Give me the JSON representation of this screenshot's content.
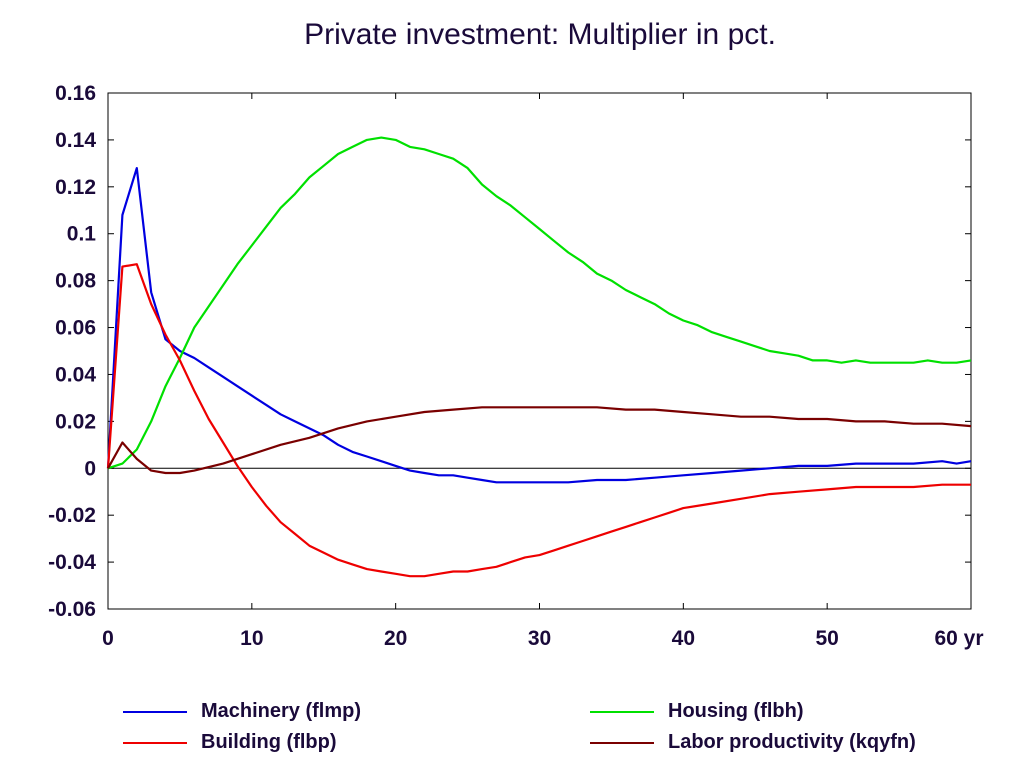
{
  "chart_data": {
    "type": "line",
    "title": "Private investment: Multiplier in pct.",
    "xlabel": "",
    "ylabel": "",
    "xlim": [
      0,
      60
    ],
    "ylim": [
      -0.06,
      0.16
    ],
    "x_ticks": [
      "0",
      "10",
      "20",
      "30",
      "40",
      "50",
      "60 yr"
    ],
    "y_ticks": [
      "0.16",
      "0.14",
      "0.12",
      "0.1",
      "0.08",
      "0.06",
      "0.04",
      "0.02",
      "0",
      "-0.02",
      "-0.04",
      "-0.06"
    ],
    "legend_position": "bottom",
    "series": [
      {
        "name": "Machinery (flmp)",
        "color": "#0000e0",
        "x": [
          0,
          1,
          2,
          3,
          4,
          5,
          6,
          7,
          8,
          9,
          10,
          11,
          12,
          13,
          14,
          15,
          16,
          17,
          18,
          19,
          20,
          21,
          22,
          23,
          24,
          25,
          26,
          27,
          28,
          29,
          30,
          32,
          34,
          36,
          38,
          40,
          42,
          44,
          46,
          48,
          50,
          52,
          54,
          56,
          58,
          59,
          60
        ],
        "y": [
          0,
          0.108,
          0.128,
          0.075,
          0.055,
          0.05,
          0.047,
          0.043,
          0.039,
          0.035,
          0.031,
          0.027,
          0.023,
          0.02,
          0.017,
          0.014,
          0.01,
          0.007,
          0.005,
          0.003,
          0.001,
          -0.001,
          -0.002,
          -0.003,
          -0.003,
          -0.004,
          -0.005,
          -0.006,
          -0.006,
          -0.006,
          -0.006,
          -0.006,
          -0.005,
          -0.005,
          -0.004,
          -0.003,
          -0.002,
          -0.001,
          0,
          0.001,
          0.001,
          0.002,
          0.002,
          0.002,
          0.003,
          0.002,
          0.003
        ]
      },
      {
        "name": "Housing (flbh)",
        "color": "#00e000",
        "x": [
          0,
          1,
          2,
          3,
          4,
          5,
          6,
          7,
          8,
          9,
          10,
          11,
          12,
          13,
          14,
          15,
          16,
          17,
          18,
          19,
          20,
          21,
          22,
          23,
          24,
          25,
          26,
          27,
          28,
          29,
          30,
          31,
          32,
          33,
          34,
          35,
          36,
          37,
          38,
          39,
          40,
          41,
          42,
          43,
          44,
          45,
          46,
          47,
          48,
          49,
          50,
          51,
          52,
          53,
          54,
          55,
          56,
          57,
          58,
          59,
          60
        ],
        "y": [
          0,
          0.002,
          0.008,
          0.02,
          0.035,
          0.047,
          0.06,
          0.069,
          0.078,
          0.087,
          0.095,
          0.103,
          0.111,
          0.117,
          0.124,
          0.129,
          0.134,
          0.137,
          0.14,
          0.141,
          0.14,
          0.137,
          0.136,
          0.134,
          0.132,
          0.128,
          0.121,
          0.116,
          0.112,
          0.107,
          0.102,
          0.097,
          0.092,
          0.088,
          0.083,
          0.08,
          0.076,
          0.073,
          0.07,
          0.066,
          0.063,
          0.061,
          0.058,
          0.056,
          0.054,
          0.052,
          0.05,
          0.049,
          0.048,
          0.046,
          0.046,
          0.045,
          0.046,
          0.045,
          0.045,
          0.045,
          0.045,
          0.046,
          0.045,
          0.045,
          0.046
        ]
      },
      {
        "name": "Building (flbp)",
        "color": "#ee0000",
        "x": [
          0,
          1,
          2,
          3,
          4,
          5,
          6,
          7,
          8,
          9,
          10,
          11,
          12,
          13,
          14,
          15,
          16,
          17,
          18,
          19,
          20,
          21,
          22,
          23,
          24,
          25,
          26,
          27,
          28,
          29,
          30,
          31,
          32,
          33,
          34,
          35,
          36,
          37,
          38,
          39,
          40,
          42,
          44,
          46,
          48,
          50,
          52,
          54,
          56,
          58,
          60
        ],
        "y": [
          0,
          0.086,
          0.087,
          0.07,
          0.057,
          0.046,
          0.033,
          0.021,
          0.011,
          0.001,
          -0.008,
          -0.016,
          -0.023,
          -0.028,
          -0.033,
          -0.036,
          -0.039,
          -0.041,
          -0.043,
          -0.044,
          -0.045,
          -0.046,
          -0.046,
          -0.045,
          -0.044,
          -0.044,
          -0.043,
          -0.042,
          -0.04,
          -0.038,
          -0.037,
          -0.035,
          -0.033,
          -0.031,
          -0.029,
          -0.027,
          -0.025,
          -0.023,
          -0.021,
          -0.019,
          -0.017,
          -0.015,
          -0.013,
          -0.011,
          -0.01,
          -0.009,
          -0.008,
          -0.008,
          -0.008,
          -0.007,
          -0.007
        ]
      },
      {
        "name": "Labor productivity (kqyfn)",
        "color": "#7a0000",
        "x": [
          0,
          1,
          2,
          3,
          4,
          5,
          6,
          8,
          10,
          12,
          14,
          16,
          18,
          20,
          22,
          24,
          26,
          28,
          30,
          32,
          34,
          36,
          38,
          40,
          42,
          44,
          46,
          48,
          50,
          52,
          54,
          56,
          58,
          60
        ],
        "y": [
          0,
          0.011,
          0.004,
          -0.001,
          -0.002,
          -0.002,
          -0.001,
          0.002,
          0.006,
          0.01,
          0.013,
          0.017,
          0.02,
          0.022,
          0.024,
          0.025,
          0.026,
          0.026,
          0.026,
          0.026,
          0.026,
          0.025,
          0.025,
          0.024,
          0.023,
          0.022,
          0.022,
          0.021,
          0.021,
          0.02,
          0.02,
          0.019,
          0.019,
          0.018
        ]
      }
    ]
  }
}
